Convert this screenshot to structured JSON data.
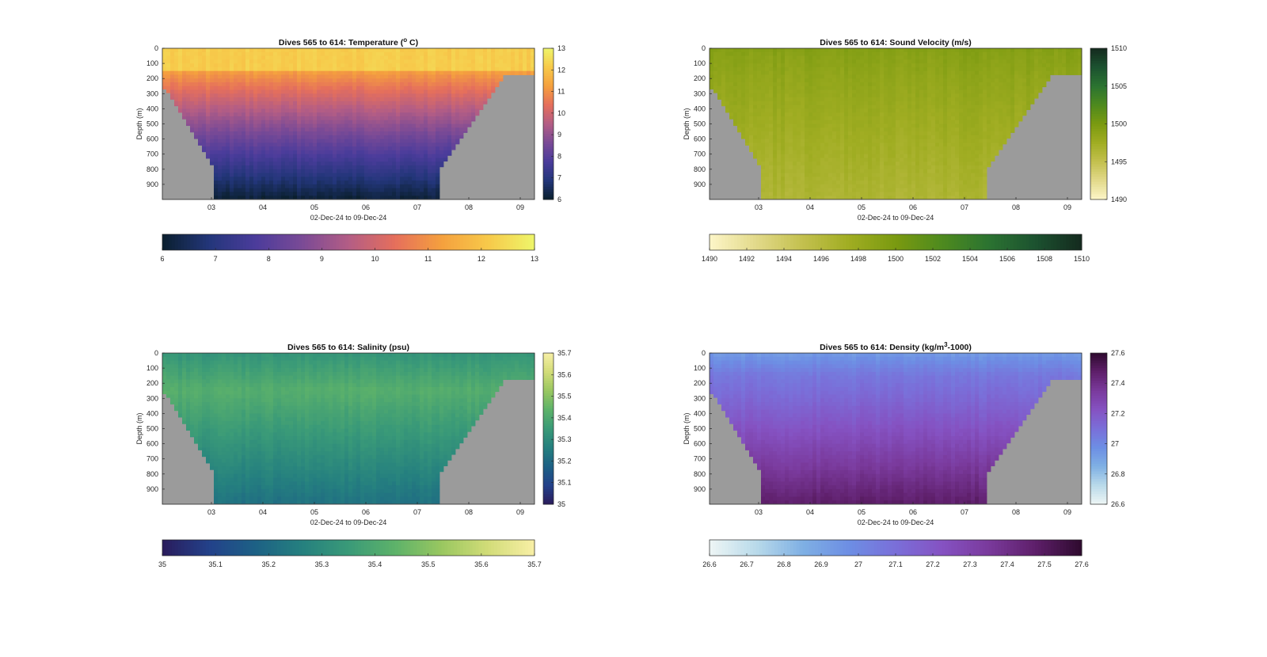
{
  "chart_data": [
    {
      "type": "heatmap",
      "title": "Dives 565 to 614: Temperature (",
      "title_sup": "o",
      "title_tail": " C)",
      "xlabel": "02-Dec-24 to 09-Dec-24",
      "ylabel": "Depth (m)",
      "x_ticks": [
        "03",
        "04",
        "05",
        "06",
        "07",
        "08",
        "09"
      ],
      "y_ticks": [
        "0",
        "100",
        "200",
        "300",
        "400",
        "500",
        "600",
        "700",
        "800",
        "900"
      ],
      "ylim": [
        0,
        1000
      ],
      "colorbar_ticks": [
        "6",
        "7",
        "8",
        "9",
        "10",
        "11",
        "12",
        "13"
      ],
      "hbar_ticks": [
        "6",
        "7",
        "8",
        "9",
        "10",
        "11",
        "12",
        "13"
      ],
      "value_range": [
        6,
        13
      ],
      "surface_value": 12.2,
      "bottom_value": 7.0,
      "colormap": [
        "#0a1f2e",
        "#23367a",
        "#4b3c9b",
        "#7a4a96",
        "#b35d85",
        "#e56f5c",
        "#f5a03e",
        "#f7c94a",
        "#eef56a"
      ]
    },
    {
      "type": "heatmap",
      "title": "Dives 565 to 614: Sound Velocity (m/s)",
      "xlabel": "02-Dec-24 to 09-Dec-24",
      "ylabel": "Depth (m)",
      "x_ticks": [
        "03",
        "04",
        "05",
        "06",
        "07",
        "08",
        "09"
      ],
      "y_ticks": [
        "0",
        "100",
        "200",
        "300",
        "400",
        "500",
        "600",
        "700",
        "800",
        "900"
      ],
      "ylim": [
        0,
        1000
      ],
      "colorbar_ticks": [
        "1490",
        "1495",
        "1500",
        "1505",
        "1510"
      ],
      "hbar_ticks": [
        "1490",
        "1492",
        "1494",
        "1496",
        "1498",
        "1500",
        "1502",
        "1504",
        "1506",
        "1508",
        "1510"
      ],
      "value_range": [
        1490,
        1510
      ],
      "surface_value": 1499.3,
      "bottom_value": 1496.5,
      "colormap": [
        "#fdf6c8",
        "#e2d98a",
        "#c3c04e",
        "#a0ad22",
        "#7a9a10",
        "#4e8a1e",
        "#2b7331",
        "#1c5230",
        "#142a1e"
      ]
    },
    {
      "type": "heatmap",
      "title": "Dives 565 to 614: Salinity (psu)",
      "xlabel": "02-Dec-24 to 09-Dec-24",
      "ylabel": "Depth (m)",
      "x_ticks": [
        "03",
        "04",
        "05",
        "06",
        "07",
        "08",
        "09"
      ],
      "y_ticks": [
        "0",
        "100",
        "200",
        "300",
        "400",
        "500",
        "600",
        "700",
        "800",
        "900"
      ],
      "ylim": [
        0,
        1000
      ],
      "colorbar_ticks": [
        "35",
        "35.1",
        "35.2",
        "35.3",
        "35.4",
        "35.5",
        "35.6",
        "35.7"
      ],
      "hbar_ticks": [
        "35",
        "35.1",
        "35.2",
        "35.3",
        "35.4",
        "35.5",
        "35.6",
        "35.7"
      ],
      "value_range": [
        35,
        35.7
      ],
      "surface_value": 35.33,
      "mid_value": 35.42,
      "bottom_value": 35.22,
      "colormap": [
        "#2a1c5c",
        "#23418a",
        "#1d6185",
        "#25807f",
        "#3a9a78",
        "#5db26a",
        "#99c760",
        "#d2dc78",
        "#f8efa6"
      ]
    },
    {
      "type": "heatmap",
      "title": "Dives 565 to 614: Density (kg/m",
      "title_sup": "3",
      "title_tail": "-1000)",
      "xlabel": "02-Dec-24 to 09-Dec-24",
      "ylabel": "Depth (m)",
      "x_ticks": [
        "03",
        "04",
        "05",
        "06",
        "07",
        "08",
        "09"
      ],
      "y_ticks": [
        "0",
        "100",
        "200",
        "300",
        "400",
        "500",
        "600",
        "700",
        "800",
        "900"
      ],
      "ylim": [
        0,
        1000
      ],
      "colorbar_ticks": [
        "26.6",
        "26.8",
        "27",
        "27.2",
        "27.4",
        "27.6"
      ],
      "hbar_ticks": [
        "26.6",
        "26.7",
        "26.8",
        "26.9",
        "27",
        "27.1",
        "27.2",
        "27.3",
        "27.4",
        "27.5",
        "27.6"
      ],
      "value_range": [
        26.6,
        27.6
      ],
      "surface_value": 26.93,
      "bottom_value": 27.48,
      "colormap": [
        "#eef6f5",
        "#b9daea",
        "#7fb0e4",
        "#6d8ee4",
        "#7a6fd9",
        "#8552c2",
        "#7a3a9c",
        "#5e1f6a",
        "#2e0a2e"
      ]
    }
  ]
}
